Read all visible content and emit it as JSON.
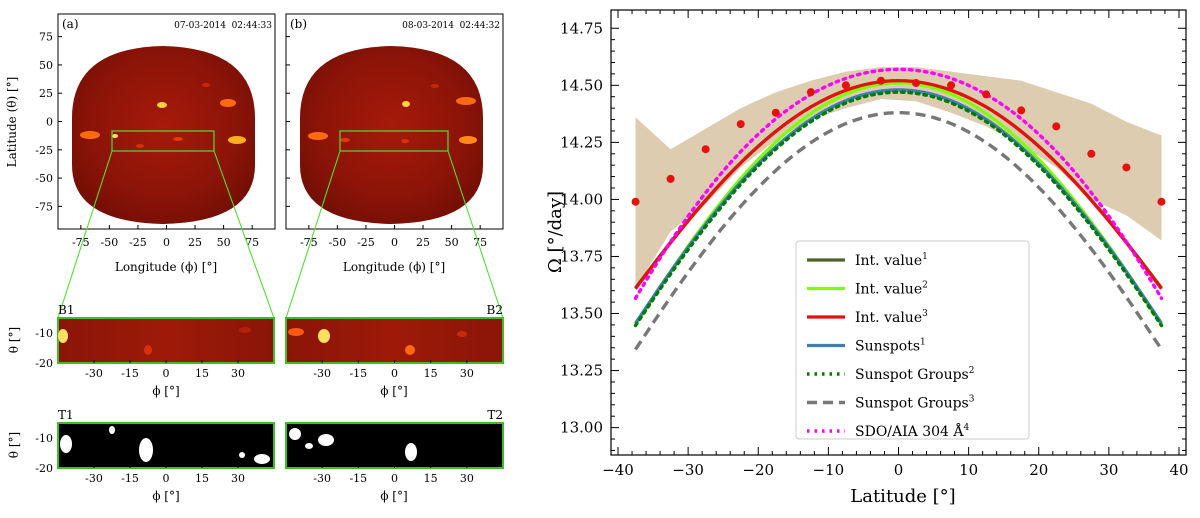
{
  "panels": {
    "a": {
      "label": "(a)",
      "date": "07-03-2014",
      "time": "02:44:33"
    },
    "b": {
      "label": "(b)",
      "date": "08-03-2014",
      "time": "02:44:32"
    },
    "map_xlabel": "Longitude  (ϕ) [°]",
    "map_ylabel": "Latitude  (θ) [°]",
    "map_xticks": [
      "-75",
      "-50",
      "-25",
      "0",
      "25",
      "50",
      "75"
    ],
    "map_yticks": [
      "75",
      "50",
      "25",
      "0",
      "-25",
      "-50",
      "-75"
    ],
    "strip_xticks": [
      "-30",
      "-15",
      "0",
      "15",
      "30"
    ],
    "strip_yticks": [
      "-10",
      "-20"
    ],
    "strip_xlabel": "ϕ [°]",
    "strip_ylabel": "θ [°]",
    "B1": "B1",
    "B2": "B2",
    "T1": "T1",
    "T2": "T2"
  },
  "chart_data": {
    "type": "line",
    "title": "",
    "xlabel": "Latitude  [°]",
    "ylabel": "Ω  [°/day]",
    "xlim": [
      -41,
      41
    ],
    "ylim": [
      12.88,
      14.83
    ],
    "xticks": [
      -40,
      -30,
      -20,
      -10,
      0,
      10,
      20,
      30,
      40
    ],
    "yticks": [
      13.0,
      13.25,
      13.5,
      13.75,
      14.0,
      14.25,
      14.5,
      14.75
    ],
    "band": {
      "x": [
        -37.5,
        -32.5,
        -27.5,
        -22.5,
        -17.5,
        -12.5,
        -7.5,
        -2.5,
        2.5,
        7.5,
        12.5,
        17.5,
        22.5,
        27.5,
        32.5,
        37.5
      ],
      "upper": [
        14.36,
        14.22,
        14.31,
        14.4,
        14.47,
        14.52,
        14.56,
        14.58,
        14.58,
        14.56,
        14.54,
        14.52,
        14.47,
        14.42,
        14.34,
        14.28
      ],
      "lower": [
        13.61,
        13.86,
        13.98,
        14.14,
        14.26,
        14.35,
        14.4,
        14.44,
        14.43,
        14.38,
        14.32,
        14.24,
        14.14,
        14.0,
        13.93,
        13.82
      ]
    },
    "points": {
      "x": [
        -37.5,
        -32.5,
        -27.5,
        -22.5,
        -17.5,
        -12.5,
        -7.5,
        -2.5,
        2.5,
        7.5,
        12.5,
        17.5,
        22.5,
        27.5,
        32.5,
        37.5
      ],
      "y": [
        13.99,
        14.09,
        14.22,
        14.33,
        14.38,
        14.47,
        14.5,
        14.52,
        14.51,
        14.5,
        14.46,
        14.39,
        14.32,
        14.2,
        14.14,
        13.99
      ]
    },
    "series": [
      {
        "name": "Int. value",
        "sup": "1",
        "color": "#4f6228",
        "style": "solid",
        "A": 14.52,
        "B": -2.45,
        "C": 0
      },
      {
        "name": "Int. value",
        "sup": "2",
        "color": "#7fff00",
        "style": "solid",
        "A": 14.51,
        "B": -2.86,
        "C": 0
      },
      {
        "name": "Int. value",
        "sup": "3",
        "color": "#e4120f",
        "style": "solid",
        "A": 14.52,
        "B": -2.46,
        "C": 0
      },
      {
        "name": "Sunspots",
        "sup": "1",
        "color": "#3f7db5",
        "style": "solid",
        "A": 14.48,
        "B": -2.76,
        "C": 0
      },
      {
        "name": "Sunspot Groups",
        "sup": "2",
        "color": "#007a00",
        "style": "dotted",
        "A": 14.47,
        "B": -2.76,
        "C": 0
      },
      {
        "name": "Sunspot Groups",
        "sup": "3",
        "color": "#777777",
        "style": "dashed",
        "A": 14.38,
        "B": -2.8,
        "C": 0
      },
      {
        "name": "SDO/AIA  304  Å",
        "sup": "4",
        "color": "#ff00ff",
        "style": "dotted",
        "A": 14.57,
        "B": -2.3,
        "C": -1.1
      }
    ],
    "legend_position": "lower-center"
  }
}
